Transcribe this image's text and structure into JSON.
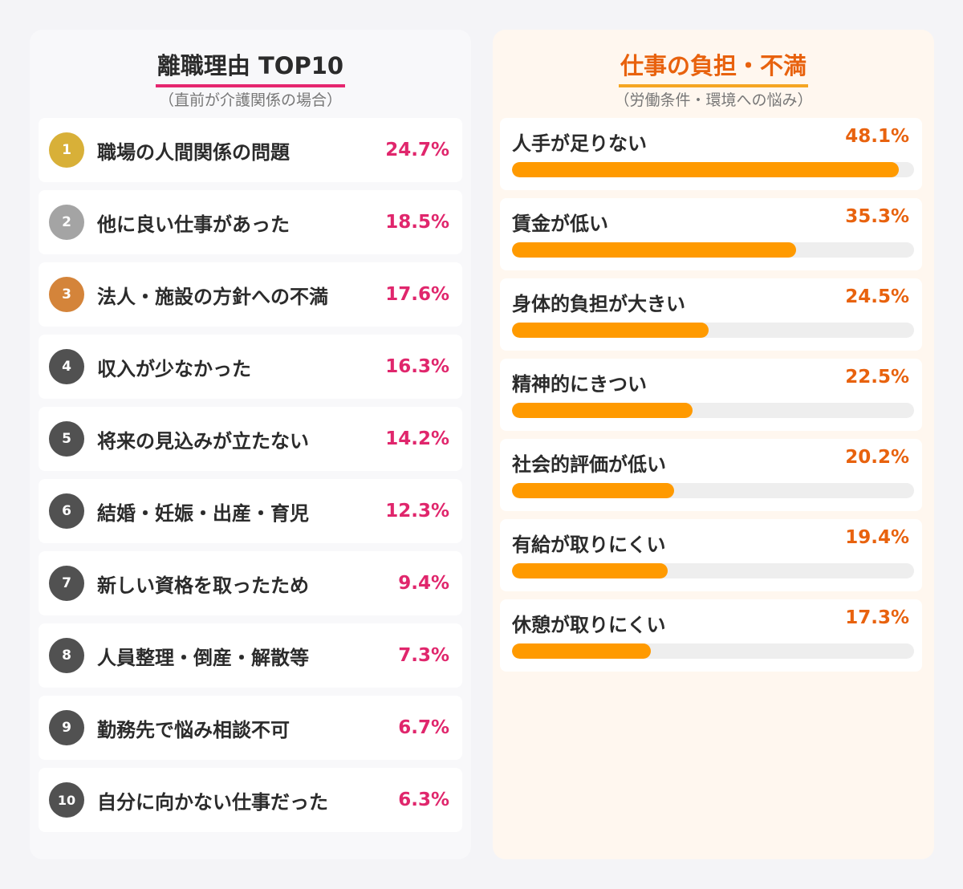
{
  "colors": {
    "left_accent": "#e6266f",
    "right_accent": "#e8620e",
    "bar_fill": "#ff9a00",
    "badge_gold": "#d8b038",
    "badge_silver": "#a4a4a4",
    "badge_bronze": "#d4843a",
    "badge_default": "#515151"
  },
  "left": {
    "title": "離職理由 TOP10",
    "subtitle": "（直前が介護関係の場合）"
  },
  "right": {
    "title": "仕事の負担・不満",
    "subtitle": "（労働条件・環境への悩み）"
  },
  "chart_data": [
    {
      "type": "table",
      "title": "離職理由 TOP10",
      "subtitle": "（直前が介護関係の場合）",
      "columns": [
        "rank",
        "label",
        "value"
      ],
      "rows": [
        {
          "rank": "1",
          "label": "職場の人間関係の問題",
          "value": 24.7,
          "value_text": "24.7%"
        },
        {
          "rank": "2",
          "label": "他に良い仕事があった",
          "value": 18.5,
          "value_text": "18.5%"
        },
        {
          "rank": "3",
          "label": "法人・施設の方針への不満",
          "value": 17.6,
          "value_text": "17.6%"
        },
        {
          "rank": "4",
          "label": "収入が少なかった",
          "value": 16.3,
          "value_text": "16.3%"
        },
        {
          "rank": "5",
          "label": "将来の見込みが立たない",
          "value": 14.2,
          "value_text": "14.2%"
        },
        {
          "rank": "6",
          "label": "結婚・妊娠・出産・育児",
          "value": 12.3,
          "value_text": "12.3%"
        },
        {
          "rank": "7",
          "label": "新しい資格を取ったため",
          "value": 9.4,
          "value_text": "9.4%"
        },
        {
          "rank": "8",
          "label": "人員整理・倒産・解散等",
          "value": 7.3,
          "value_text": "7.3%"
        },
        {
          "rank": "9",
          "label": "勤務先で悩み相談不可",
          "value": 6.7,
          "value_text": "6.7%"
        },
        {
          "rank": "10",
          "label": "自分に向かない仕事だった",
          "value": 6.3,
          "value_text": "6.3%"
        }
      ]
    },
    {
      "type": "bar",
      "orientation": "horizontal",
      "title": "仕事の負担・不満",
      "subtitle": "（労働条件・環境への悩み）",
      "categories": [
        "人手が足りない",
        "賃金が低い",
        "身体的負担が大きい",
        "精神的にきつい",
        "社会的評価が低い",
        "有給が取りにくい",
        "休憩が取りにくい"
      ],
      "values": [
        48.1,
        35.3,
        24.5,
        22.5,
        20.2,
        19.4,
        17.3
      ],
      "value_labels": [
        "48.1%",
        "35.3%",
        "24.5%",
        "22.5%",
        "20.2%",
        "19.4%",
        "17.3%"
      ],
      "xlim": [
        0,
        50
      ]
    }
  ]
}
